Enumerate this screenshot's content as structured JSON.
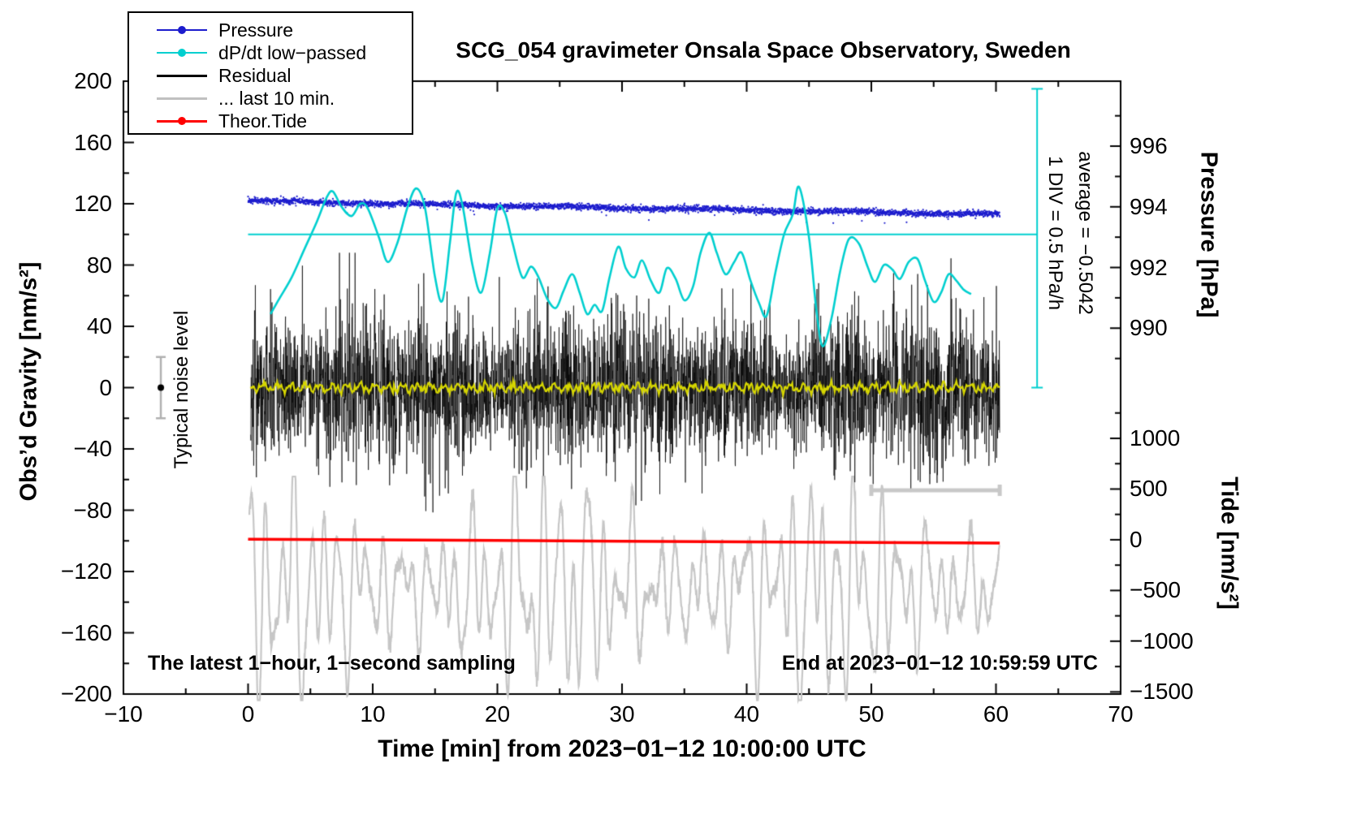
{
  "chart_data": {
    "type": "line",
    "title": "SCG_054 gravimeter Onsala Space Observatory, Sweden",
    "xlabel": "Time [min] from 2023−01−12 10:00:00 UTC",
    "x_axis": {
      "min": -10,
      "max": 70,
      "minor_step": 5,
      "major": [
        -10,
        0,
        10,
        20,
        30,
        40,
        50,
        60,
        70
      ],
      "labels": [
        "−10",
        "0",
        "10",
        "20",
        "30",
        "40",
        "50",
        "60",
        "70"
      ]
    },
    "y_left": {
      "label": "Obs’d Gravity [nm/s²]",
      "min": -200,
      "max": 200,
      "minor_step": 20,
      "major": [
        200,
        160,
        120,
        80,
        40,
        0,
        -40,
        -80,
        -120,
        -160,
        -200
      ],
      "labels": [
        "200",
        "160",
        "120",
        "80",
        "40",
        "0",
        "−40",
        "−80",
        "−120",
        "−160",
        "−200"
      ]
    },
    "y_pressure": {
      "label": "Pressure [hPa]",
      "major": [
        996,
        994,
        992,
        990
      ],
      "labels": [
        "996",
        "994",
        "992",
        "990"
      ],
      "minor": [
        997,
        995,
        993,
        991,
        989
      ],
      "ref_hpa": 994,
      "gravity_at_ref": 118,
      "gravity_per_hpa": 19.8
    },
    "y_tide": {
      "label": "Tide [nm/s²]",
      "major": [
        1000,
        500,
        0,
        -500,
        -1000,
        -1500
      ],
      "labels": [
        "1000",
        "500",
        "0",
        "−500",
        "−1000",
        "−1500"
      ],
      "minor": [
        1250,
        750,
        250,
        -250,
        -750,
        -1250
      ],
      "gravity_at_zero": -99.3,
      "gravity_per_unit": 0.0662
    },
    "legend": [
      {
        "label": "Pressure",
        "color": "#1c1ccd",
        "line_width": 2,
        "dot": true
      },
      {
        "label": "dP/dt low−passed",
        "color": "#00cfcf",
        "line_width": 2,
        "dot": true
      },
      {
        "label": "Residual",
        "color": "#000000",
        "line_width": 3,
        "dot": false
      },
      {
        "label": "... last 10 min.",
        "color": "#c0c0c0",
        "line_width": 3,
        "dot": false
      },
      {
        "label": "Theor.Tide",
        "color": "#ff0000",
        "line_width": 3,
        "dot": true
      }
    ],
    "series": {
      "pressure": {
        "name": "Pressure",
        "color": "#1c1ccd",
        "x_start": 0,
        "x_end": 60.3,
        "n": 3600,
        "base_start": 121.9,
        "slope": -0.168,
        "quad": 0.0004,
        "wave_amp": 0.4,
        "wave_freq": 0.55,
        "jitter_sigma": 1.0,
        "outlier_prob": 0.002,
        "outlier_extra": 6,
        "dot_radius": 1.1,
        "seed": 7,
        "value_hpa_start": 994.1,
        "value_hpa_end": 993.6
      },
      "dpdt": {
        "name": "dP/dt low−passed",
        "color": "#00cfcf",
        "width": 2.6,
        "points": [
          [
            1.8,
            48
          ],
          [
            2.5,
            58
          ],
          [
            3.5,
            72
          ],
          [
            4.5,
            90
          ],
          [
            5.5,
            108
          ],
          [
            6.3,
            124
          ],
          [
            6.8,
            128
          ],
          [
            7.5,
            118
          ],
          [
            8.3,
            112
          ],
          [
            9.0,
            120
          ],
          [
            9.6,
            117
          ],
          [
            10.5,
            98
          ],
          [
            11.2,
            82
          ],
          [
            12.0,
            95
          ],
          [
            12.8,
            118
          ],
          [
            13.5,
            130
          ],
          [
            14.2,
            117
          ],
          [
            15.0,
            72
          ],
          [
            15.6,
            57
          ],
          [
            16.2,
            95
          ],
          [
            16.7,
            127
          ],
          [
            17.2,
            119
          ],
          [
            18.0,
            80
          ],
          [
            18.7,
            62
          ],
          [
            19.4,
            88
          ],
          [
            20.0,
            117
          ],
          [
            20.6,
            114
          ],
          [
            21.2,
            95
          ],
          [
            22.0,
            72
          ],
          [
            22.7,
            79
          ],
          [
            23.3,
            72
          ],
          [
            24.0,
            58
          ],
          [
            24.7,
            52
          ],
          [
            25.3,
            63
          ],
          [
            26.0,
            74
          ],
          [
            26.6,
            62
          ],
          [
            27.2,
            48
          ],
          [
            27.8,
            54
          ],
          [
            28.4,
            50
          ],
          [
            29.0,
            72
          ],
          [
            29.7,
            92
          ],
          [
            30.3,
            78
          ],
          [
            31.0,
            72
          ],
          [
            31.6,
            83
          ],
          [
            32.3,
            70
          ],
          [
            33.0,
            62
          ],
          [
            33.6,
            78
          ],
          [
            34.3,
            71
          ],
          [
            35.0,
            57
          ],
          [
            35.7,
            66
          ],
          [
            36.3,
            88
          ],
          [
            37.0,
            101
          ],
          [
            37.6,
            88
          ],
          [
            38.3,
            74
          ],
          [
            39.0,
            82
          ],
          [
            39.6,
            88
          ],
          [
            40.3,
            70
          ],
          [
            41.0,
            55
          ],
          [
            41.6,
            47
          ],
          [
            42.3,
            75
          ],
          [
            43.0,
            100
          ],
          [
            43.7,
            113
          ],
          [
            44.2,
            131
          ],
          [
            45.0,
            98
          ],
          [
            45.6,
            50
          ],
          [
            46.1,
            27
          ],
          [
            46.8,
            45
          ],
          [
            47.5,
            76
          ],
          [
            48.2,
            97
          ],
          [
            49.0,
            94
          ],
          [
            49.7,
            79
          ],
          [
            50.3,
            69
          ],
          [
            51.0,
            80
          ],
          [
            51.7,
            77
          ],
          [
            52.3,
            71
          ],
          [
            53.0,
            82
          ],
          [
            53.7,
            84
          ],
          [
            54.3,
            70
          ],
          [
            55.0,
            56
          ],
          [
            55.6,
            62
          ],
          [
            56.2,
            74
          ],
          [
            56.8,
            70
          ],
          [
            57.4,
            64
          ],
          [
            58.0,
            61
          ]
        ]
      },
      "residual": {
        "name": "Residual",
        "color": "#000000",
        "width": 0.7,
        "x_start": 0.2,
        "x_end": 60.3,
        "n": 3600,
        "sigma_base": 14,
        "sigma_var1": 9,
        "sigma_var2": 6,
        "env_f1": 0.41,
        "env_p1": 1.2,
        "env_f2": 0.135,
        "env_p2": 0.4,
        "spike_prob": 0.005,
        "spike_gain": 2.2,
        "clip_min": -145,
        "clip_max": 88,
        "seed": 21
      },
      "residual_lowpass": {
        "name": "Residual low-passed",
        "color": "#d6d600",
        "width": 2.2,
        "x_start": 0.2,
        "x_end": 60.3,
        "n": 900,
        "amp1": 1.8,
        "freq1": 0.9,
        "phase1": 0.7,
        "amp2": 1.3,
        "freq2": 2.2,
        "phase2": 2.1,
        "noise": 0.9,
        "seed": 5
      },
      "last10": {
        "name": "... last 10 min.",
        "color": "#c6c6c6",
        "width": 2.2,
        "x_start": 0.1,
        "x_end": 60.3,
        "n": 2400,
        "center": -131,
        "components": [
          [
            30,
            0.85,
            0.3
          ],
          [
            20,
            0.55,
            2.1
          ],
          [
            15,
            1.25,
            4.0
          ],
          [
            16,
            0.33,
            1.2
          ]
        ],
        "mod_amp": 0.4,
        "mod_freq": 0.045,
        "mod_phase": 1.0,
        "noise": 2.5,
        "clip_min": -204,
        "clip_max": -58,
        "seed": 33
      },
      "tide": {
        "name": "Theor.Tide",
        "color": "#ff0000",
        "width": 3.5,
        "points": [
          [
            0,
            -99.0
          ],
          [
            10,
            -99.4
          ],
          [
            20,
            -99.8
          ],
          [
            30,
            -100.2
          ],
          [
            40,
            -100.6
          ],
          [
            50,
            -101.0
          ],
          [
            60.3,
            -101.4
          ]
        ]
      }
    },
    "markers": {
      "ref_line": {
        "color": "#00cfcf",
        "width": 2,
        "y": 100,
        "x_start": 0,
        "x_end": 63.3
      },
      "div_bar": {
        "color": "#00cfcf",
        "width": 2,
        "x": 63.3,
        "y_top": 195,
        "y_bottom": 0,
        "label": "1 DIV = 0.5 hPa/h"
      },
      "average_label": "average = −0.5042",
      "noise": {
        "x": -7,
        "y": 0,
        "error": 20,
        "bar_color": "#b0b0b0",
        "dot_color": "#000000",
        "label": "Typical noise level"
      },
      "last10_bar": {
        "x_start": 50,
        "x_end": 60.3,
        "y": -67,
        "color": "#c8c8c8",
        "width": 5
      }
    },
    "texts": {
      "sampling_note": "The latest 1−hour, 1−second sampling",
      "end_note": "End at 2023−01−12 10:59:59 UTC"
    }
  }
}
